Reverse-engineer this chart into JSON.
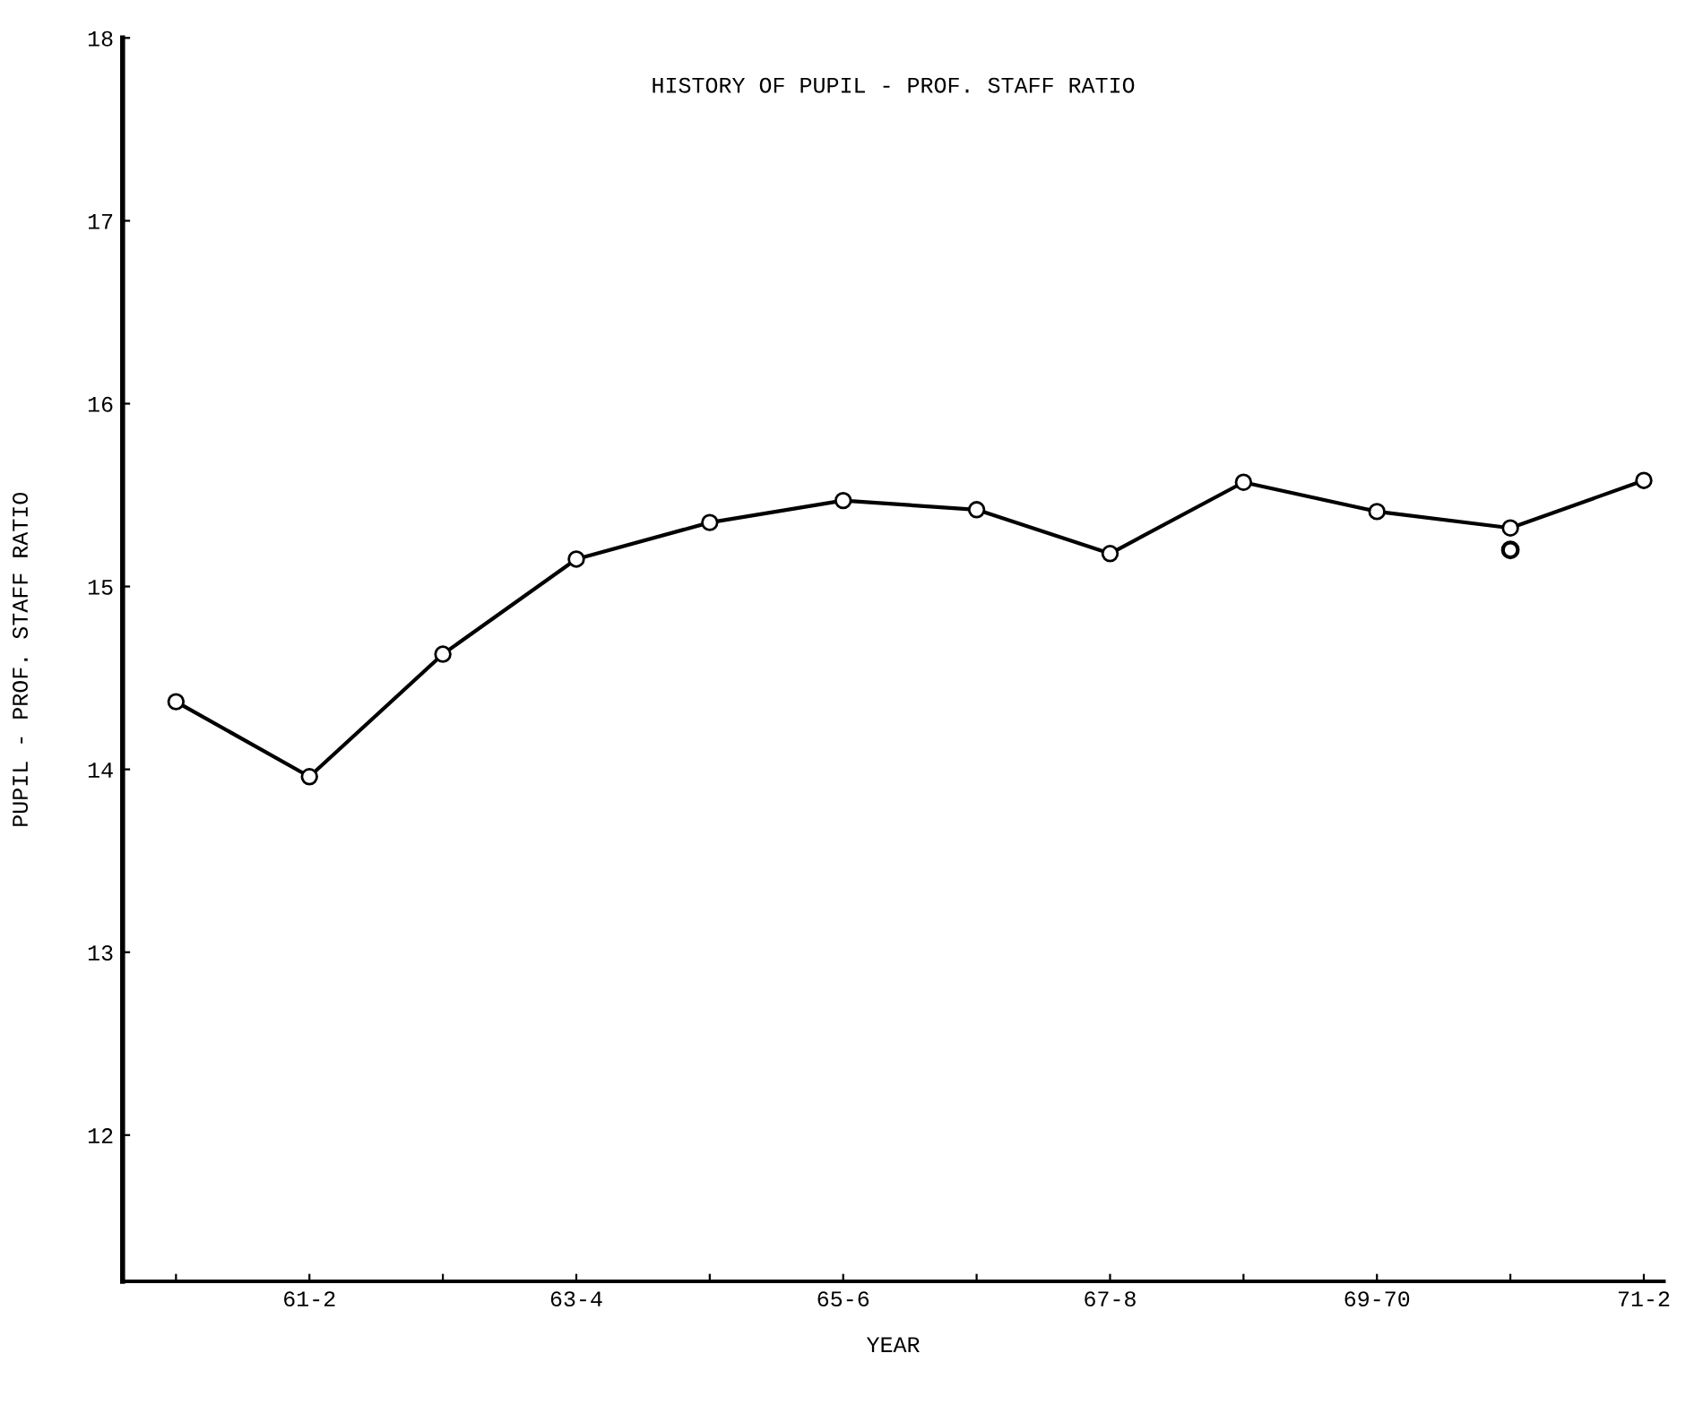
{
  "chart_data": {
    "type": "line",
    "title": "HISTORY OF PUPIL - PROF. STAFF RATIO",
    "xlabel": "YEAR",
    "ylabel": "PUPIL - PROF. STAFF RATIO",
    "categories": [
      null,
      "61-2",
      null,
      "63-4",
      null,
      "65-6",
      null,
      "67-8",
      null,
      "69-70",
      null,
      "71-2"
    ],
    "series": [
      {
        "color": "#000000",
        "marker": "circle",
        "values": [
          14.37,
          13.96,
          14.63,
          15.15,
          15.35,
          15.47,
          15.42,
          15.18,
          15.57,
          15.41,
          15.32,
          15.58
        ]
      },
      {
        "type": "scatter",
        "color": "#000000",
        "marker": "circle",
        "values": [
          null,
          null,
          null,
          null,
          null,
          null,
          null,
          null,
          null,
          null,
          15.2,
          null
        ]
      }
    ],
    "ylim": [
      11.2,
      18
    ],
    "yticks": [
      12,
      13,
      14,
      15,
      16,
      17,
      18
    ],
    "grid": false
  }
}
